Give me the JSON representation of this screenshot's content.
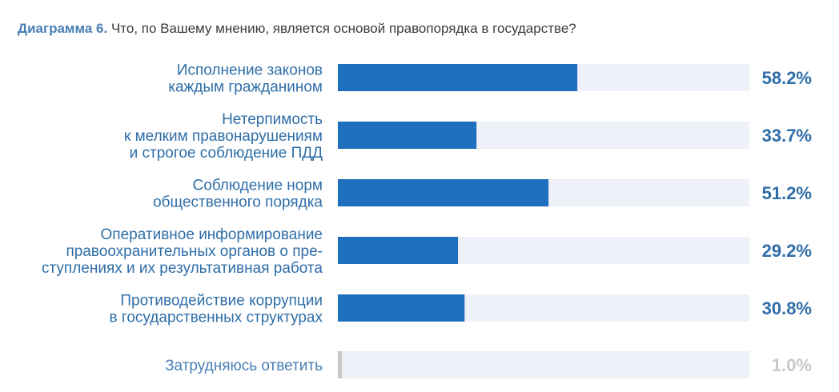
{
  "header": {
    "prefix": "Диаграмма 6.",
    "question": "Что, по Вашему мнению, является основой правопорядка в государстве?"
  },
  "colors": {
    "bar": "#1f6fbf",
    "track": "#eef2f8",
    "muted_bar": "#c8c8c8",
    "label": "#2f6ea8",
    "muted_value": "#c8c8c8"
  },
  "chart_data": {
    "type": "bar",
    "orientation": "horizontal",
    "xlim": [
      0,
      100
    ],
    "categories": [
      [
        "Исполнение законов",
        "каждым гражданином"
      ],
      [
        "Нетерпимость",
        "к мелким правонарушениям",
        "и строгое соблюдение ПДД"
      ],
      [
        "Соблюдение норм",
        "общественного порядка"
      ],
      [
        "Оперативное информирование",
        "правоохранительных органов о пре-",
        "ступлениях и их результативная работа"
      ],
      [
        "Противодействие коррупции",
        "в государственных структурах"
      ],
      [
        "Затрудняюсь ответить"
      ]
    ],
    "values": [
      58.2,
      33.7,
      51.2,
      29.2,
      30.8,
      1.0
    ],
    "value_labels": [
      "58.2%",
      "33.7%",
      "51.2%",
      "29.2%",
      "30.8%",
      "1.0%"
    ],
    "muted": [
      false,
      false,
      false,
      false,
      false,
      true
    ]
  }
}
